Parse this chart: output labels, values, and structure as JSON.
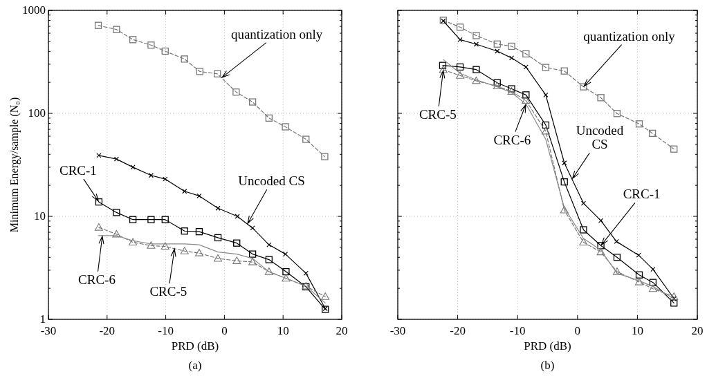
{
  "chart_data": [
    {
      "type": "line",
      "title": "(a)",
      "xlabel": "PRD (dB)",
      "ylabel": "Minimum Energy/sample (N₀)",
      "log": "y",
      "grid": true,
      "xlim": [
        -30,
        20
      ],
      "xticks": [
        -30,
        -20,
        -10,
        0,
        10,
        20
      ],
      "ylim": [
        1,
        1000
      ],
      "yticks": [
        1,
        10,
        100,
        1000
      ],
      "series": [
        {
          "color": "#777777",
          "line_style": "dashed",
          "marker": "square",
          "x": [
            -21.5,
            -18.4,
            -15.6,
            -12.5,
            -10.1,
            -6.8,
            -4.2,
            -1.2,
            2.0,
            4.8,
            7.6,
            10.4,
            13.9,
            17.1
          ],
          "values": [
            715,
            652,
            520,
            460,
            402,
            337,
            255,
            242,
            161,
            129,
            90,
            74,
            56,
            38
          ]
        },
        {
          "color": "#000000",
          "line_style": "solid",
          "marker": "cross",
          "x": [
            -21.4,
            -18.4,
            -15.6,
            -12.5,
            -10.1,
            -6.8,
            -4.3,
            -1.1,
            2.2,
            4.8,
            7.6,
            10.4,
            13.9,
            17.2
          ],
          "values": [
            39,
            36,
            30,
            25,
            23,
            17.5,
            15.8,
            12,
            10,
            7.7,
            5.3,
            4.3,
            2.8,
            1.27
          ]
        },
        {
          "color": "#000000",
          "line_style": "solid",
          "marker": "square",
          "x": [
            -21.4,
            -18.4,
            -15.6,
            -12.5,
            -10.1,
            -6.8,
            -4.3,
            -1.1,
            2.1,
            4.8,
            7.6,
            10.5,
            13.9,
            17.2
          ],
          "values": [
            13.8,
            10.9,
            9.3,
            9.3,
            9.3,
            7.2,
            7.1,
            6.2,
            5.5,
            4.3,
            3.8,
            2.9,
            2.07,
            1.25
          ]
        },
        {
          "color": "#777777",
          "line_style": "dashed",
          "marker": "triangle",
          "x": [
            -21.4,
            -18.4,
            -15.6,
            -12.5,
            -10.1,
            -6.8,
            -4.3,
            -1.1,
            2.1,
            4.8,
            7.6,
            10.5,
            13.9,
            17.2
          ],
          "values": [
            7.8,
            6.7,
            5.6,
            5.2,
            5.1,
            4.6,
            4.4,
            3.9,
            3.7,
            3.6,
            2.9,
            2.5,
            2.1,
            1.66
          ]
        },
        {
          "color": "#8a8a8a",
          "line_style": "solid",
          "marker": "none",
          "x": [
            -21.5,
            -18.4,
            -15.6,
            -12.5,
            -10.1,
            -6.8,
            -4.3,
            -1.1,
            2.1,
            4.8,
            7.6,
            10.5,
            13.9,
            17.2
          ],
          "values": [
            6.5,
            6.5,
            5.8,
            5.4,
            5.4,
            5.4,
            5.3,
            4.5,
            4.3,
            3.9,
            2.9,
            2.5,
            2.1,
            1.44
          ]
        }
      ],
      "annotations": [
        {
          "text": "quantization only",
          "x": -0.5,
          "y": 221
        },
        {
          "text": "Uncoded CS",
          "x": 3.9,
          "y": 8.4
        },
        {
          "text": "CRC-1",
          "x": -21.4,
          "y": 13.8
        },
        {
          "text": "CRC-6",
          "x": -20.8,
          "y": 6.5
        },
        {
          "text": "CRC-5",
          "x": -8.5,
          "y": 4.9
        }
      ]
    },
    {
      "type": "line",
      "title": "(b)",
      "xlabel": "PRD (dB)",
      "log": "y",
      "grid": true,
      "tick_labels": "x",
      "xlim": [
        -30,
        20
      ],
      "xticks": [
        -30,
        -20,
        -10,
        0,
        10,
        20
      ],
      "ylim": [
        1,
        1000
      ],
      "yticks": [
        1,
        10,
        100,
        1000
      ],
      "series": [
        {
          "color": "#777777",
          "line_style": "dashed",
          "marker": "square",
          "x": [
            -22.4,
            -19.6,
            -16.9,
            -13.4,
            -11.0,
            -8.6,
            -5.3,
            -2.2,
            1.0,
            3.9,
            6.6,
            10.3,
            12.5,
            16.1
          ],
          "values": [
            801,
            687,
            569,
            471,
            448,
            378,
            279,
            258,
            181,
            142,
            99.6,
            79,
            64,
            45
          ]
        },
        {
          "color": "#000000",
          "line_style": "solid",
          "marker": "cross",
          "x": [
            -22.4,
            -19.6,
            -16.9,
            -13.4,
            -11.0,
            -8.6,
            -5.3,
            -2.2,
            1.0,
            3.9,
            6.5,
            10.2,
            12.6,
            16.1
          ],
          "values": [
            790,
            519,
            469,
            402,
            345,
            282,
            151,
            33,
            13.4,
            9.1,
            5.7,
            4.2,
            3.06,
            1.59
          ]
        },
        {
          "color": "#000000",
          "line_style": "solid",
          "marker": "square",
          "x": [
            -22.5,
            -19.6,
            -16.9,
            -13.4,
            -11.0,
            -8.6,
            -5.3,
            -2.2,
            1.0,
            3.9,
            6.6,
            10.3,
            12.6,
            16.1
          ],
          "values": [
            292,
            282,
            266,
            198,
            173,
            151,
            77,
            21.6,
            7.4,
            5.2,
            4.0,
            2.7,
            2.28,
            1.44
          ]
        },
        {
          "color": "#777777",
          "line_style": "dashed",
          "marker": "triangle",
          "x": [
            -22.4,
            -19.6,
            -16.9,
            -13.4,
            -11.0,
            -8.6,
            -5.3,
            -2.2,
            1.0,
            3.9,
            6.6,
            10.3,
            12.6,
            16.1
          ],
          "values": [
            265,
            233,
            207,
            184,
            163,
            133,
            67,
            11.5,
            5.6,
            4.5,
            2.9,
            2.3,
            1.98,
            1.66
          ]
        },
        {
          "color": "#8a8a8a",
          "line_style": "solid",
          "marker": "none",
          "x": [
            -22.4,
            -19.6,
            -16.9,
            -13.4,
            -11.0,
            -8.6,
            -5.3,
            -2.2,
            1.0,
            3.9,
            6.6,
            10.3,
            12.6,
            16.1
          ],
          "values": [
            333,
            245,
            211,
            181,
            159,
            123,
            56,
            12.1,
            6.1,
            4.7,
            2.8,
            2.37,
            2.08,
            1.59
          ]
        }
      ],
      "annotations": [
        {
          "text": "quantization only",
          "x": 1.0,
          "y": 181
        },
        {
          "text": "Uncoded CS",
          "x": -0.9,
          "y": 23
        },
        {
          "text": "CRC-6",
          "x": -8.6,
          "y": 123
        },
        {
          "text": "CRC-5",
          "x": -22.4,
          "y": 265
        },
        {
          "text": "CRC-1",
          "x": 3.9,
          "y": 5.2
        }
      ]
    }
  ]
}
